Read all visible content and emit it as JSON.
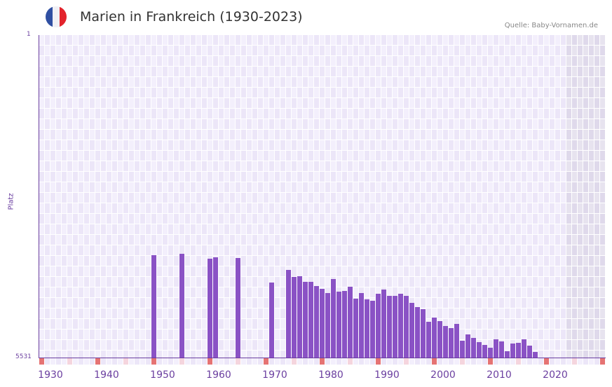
{
  "header": {
    "title": "Marien in Frankreich (1930-2023)",
    "source": "Quelle: Baby-Vornamen.de",
    "flag_colors": [
      "#2f4fa2",
      "#f0f0f5",
      "#e3232c"
    ]
  },
  "colors": {
    "bar": "#8a52c5",
    "axis": "#6b3fa0",
    "grid_a": "#f3effc",
    "grid_b": "#ece6f8",
    "future_a": "#e7e3ef",
    "future_b": "#dfd9eb",
    "decade_marker": "#e57373",
    "half_decade_marker": "#f5d5de"
  },
  "chart_data": {
    "type": "bar",
    "title": "Marien in Frankreich (1930-2023)",
    "xlabel": "",
    "ylabel": "Platz",
    "y_axis_inverted": true,
    "ylim": [
      5531,
      1
    ],
    "y_ticks": [
      "1",
      "5531"
    ],
    "x_range": [
      1930,
      2030
    ],
    "x_ticks": [
      "1930",
      "1940",
      "1950",
      "1960",
      "1970",
      "1980",
      "1990",
      "2000",
      "2010",
      "2020"
    ],
    "shaded_future_from": 2024,
    "source": "Quelle: Baby-Vornamen.de",
    "categories": [
      1950,
      1955,
      1960,
      1961,
      1965,
      1971,
      1974,
      1975,
      1976,
      1977,
      1978,
      1979,
      1980,
      1981,
      1982,
      1983,
      1984,
      1985,
      1986,
      1987,
      1988,
      1989,
      1990,
      1991,
      1992,
      1993,
      1994,
      1995,
      1996,
      1997,
      1998,
      1999,
      2000,
      2001,
      2002,
      2003,
      2004,
      2005,
      2006,
      2007,
      2008,
      2009,
      2010,
      2011,
      2012,
      2013,
      2014,
      2015,
      2016,
      2017,
      2018
    ],
    "values": [
      3771,
      3747,
      3831,
      3807,
      3819,
      4245,
      4028,
      4148,
      4136,
      4232,
      4232,
      4304,
      4352,
      4424,
      4184,
      4400,
      4388,
      4316,
      4521,
      4424,
      4533,
      4557,
      4437,
      4365,
      4473,
      4473,
      4437,
      4473,
      4593,
      4665,
      4701,
      4918,
      4846,
      4906,
      4990,
      5026,
      4954,
      5242,
      5134,
      5194,
      5267,
      5315,
      5363,
      5218,
      5254,
      5423,
      5291,
      5279,
      5218,
      5327,
      5435
    ]
  },
  "axes": {
    "y_top_label": "1",
    "y_bottom_label": "5531",
    "y_title": "Platz"
  }
}
